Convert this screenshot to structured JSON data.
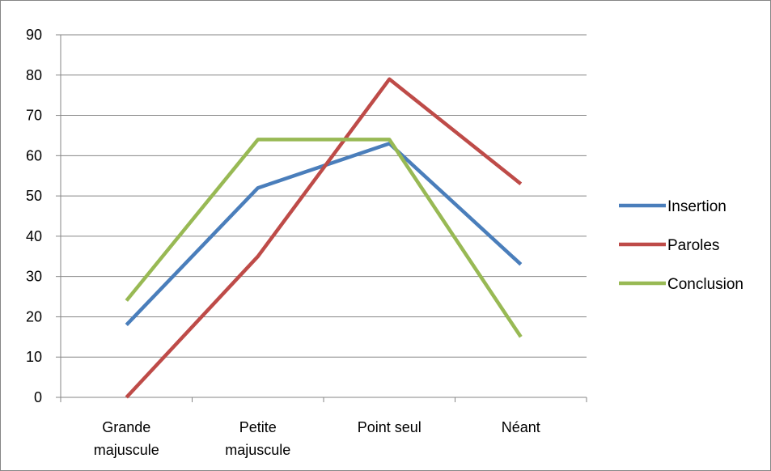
{
  "chart_data": {
    "type": "line",
    "categories": [
      [
        "Grande",
        "majuscule"
      ],
      [
        "Petite",
        "majuscule"
      ],
      [
        "Point seul"
      ],
      [
        "Néant"
      ]
    ],
    "series": [
      {
        "name": "Insertion",
        "values": [
          18,
          52,
          63,
          33
        ],
        "color": "#4a7ebb"
      },
      {
        "name": "Paroles",
        "values": [
          0,
          35,
          79,
          53
        ],
        "color": "#be4b48"
      },
      {
        "name": "Conclusion",
        "values": [
          24,
          64,
          64,
          15
        ],
        "color": "#98b954"
      }
    ],
    "ylim": [
      0,
      90
    ],
    "yticks": [
      0,
      10,
      20,
      30,
      40,
      50,
      60,
      70,
      80,
      90
    ],
    "grid": true,
    "legend_position": "right",
    "axis_color": "#868686",
    "title": "",
    "xlabel": "",
    "ylabel": ""
  }
}
